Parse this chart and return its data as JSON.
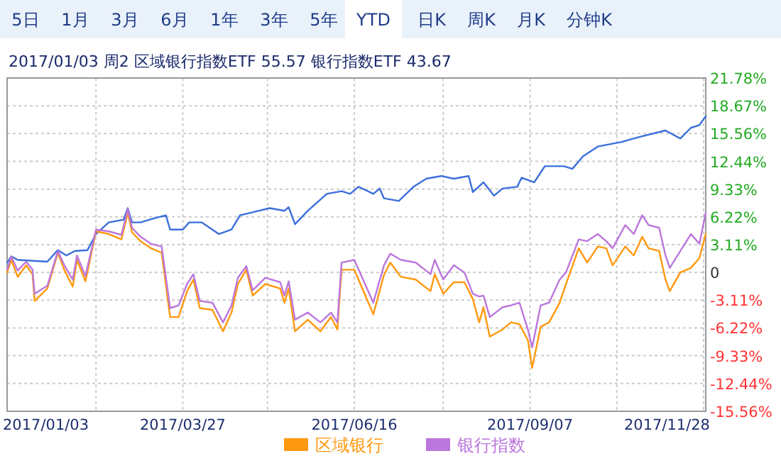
{
  "chart_data": {
    "type": "line",
    "title": "2017/01/03 周2 区域银行指数ETF 55.57 银行指数ETF 43.67",
    "annotations": [
      "5日",
      "1月",
      "3月",
      "6月",
      "1年",
      "3年",
      "5年",
      "YTD",
      "日K",
      "周K",
      "月K",
      "分钟K"
    ],
    "xlim": [
      "2017-01-03",
      "2017-11-29"
    ],
    "xticks": [
      {
        "value": "2017-01-03",
        "label": "2017/01/03"
      },
      {
        "value": "2017-02-14",
        "label": null
      },
      {
        "value": "2017-03-27",
        "label": "2017/03/27"
      },
      {
        "value": "2017-05-06",
        "label": null
      },
      {
        "value": "2017-06-16",
        "label": "2017/06/16"
      },
      {
        "value": "2017-07-28",
        "label": null
      },
      {
        "value": "2017-09-07",
        "label": "2017/09/07"
      },
      {
        "value": "2017-10-18",
        "label": null
      },
      {
        "value": "2017-11-28",
        "label": "2017/11/28"
      }
    ],
    "ylim": [
      -15.56,
      21.78
    ],
    "yticks": [
      {
        "value": -15.56,
        "label": "-15.56%"
      },
      {
        "value": -12.44,
        "label": "-12.44%"
      },
      {
        "value": -9.33,
        "label": "-9.33%"
      },
      {
        "value": -6.22,
        "label": "-6.22%"
      },
      {
        "value": -3.11,
        "label": "-3.11%"
      },
      0,
      {
        "value": 3.11,
        "label": "3.11%"
      },
      {
        "value": 6.22,
        "label": "6.22%"
      },
      {
        "value": 9.33,
        "label": "9.33%"
      },
      {
        "value": 12.44,
        "label": "12.44%"
      },
      {
        "value": 15.56,
        "label": "15.56%"
      },
      {
        "value": 18.67,
        "label": "18.67%"
      },
      {
        "value": 21.78,
        "label": "21.78%"
      }
    ],
    "grid": true,
    "legend": "bottom",
    "line_style": "solid",
    "marker": "none",
    "series": [
      {
        "color": "#3b6fdc",
        "x": [
          "2017-01-03",
          "2017-01-05",
          "2017-01-08",
          "2017-01-22",
          "2017-01-27",
          "2017-01-31",
          "2017-02-04",
          "2017-02-10",
          "2017-02-14",
          "2017-02-20",
          "2017-02-27",
          "2017-03-01",
          "2017-03-03",
          "2017-03-07",
          "2017-03-14",
          "2017-03-19",
          "2017-03-21",
          "2017-03-27",
          "2017-03-30",
          "2017-04-05",
          "2017-04-13",
          "2017-04-19",
          "2017-04-23",
          "2017-04-30",
          "2017-05-07",
          "2017-05-14",
          "2017-05-16",
          "2017-05-19",
          "2017-05-25",
          "2017-06-03",
          "2017-06-10",
          "2017-06-14",
          "2017-06-18",
          "2017-06-25",
          "2017-06-28",
          "2017-06-30",
          "2017-07-07",
          "2017-07-14",
          "2017-07-20",
          "2017-07-27",
          "2017-08-02",
          "2017-08-09",
          "2017-08-11",
          "2017-08-16",
          "2017-08-21",
          "2017-08-25",
          "2017-09-01",
          "2017-09-03",
          "2017-09-09",
          "2017-09-14",
          "2017-09-23",
          "2017-09-27",
          "2017-10-02",
          "2017-10-09",
          "2017-10-20",
          "2017-10-29",
          "2017-11-10",
          "2017-11-17",
          "2017-11-22",
          "2017-11-26",
          "2017-11-29"
        ],
        "values": [
          1.1,
          1.8,
          1.4,
          1.2,
          2.5,
          1.9,
          2.4,
          2.5,
          4.3,
          5.6,
          5.9,
          7.2,
          5.6,
          5.6,
          6.1,
          6.4,
          4.8,
          4.8,
          5.6,
          5.6,
          4.3,
          4.8,
          6.4,
          6.8,
          7.2,
          6.9,
          7.3,
          5.4,
          6.9,
          8.8,
          9.1,
          8.8,
          9.6,
          8.8,
          9.4,
          8.3,
          8.0,
          9.6,
          10.5,
          10.8,
          10.5,
          10.8,
          9.0,
          10.1,
          8.6,
          9.4,
          9.6,
          10.6,
          10.1,
          11.9,
          11.9,
          11.6,
          13.0,
          14.1,
          14.6,
          15.2,
          15.9,
          15.0,
          16.2,
          16.5,
          17.5
        ]
      },
      {
        "name": "区域银行",
        "color": "#ff9910",
        "x": [
          "2017-01-03",
          "2017-01-05",
          "2017-01-08",
          "2017-01-12",
          "2017-01-15",
          "2017-01-16",
          "2017-01-22",
          "2017-01-27",
          "2017-01-30",
          "2017-02-03",
          "2017-02-05",
          "2017-02-09",
          "2017-02-14",
          "2017-02-20",
          "2017-02-26",
          "2017-03-01",
          "2017-03-03",
          "2017-03-07",
          "2017-03-12",
          "2017-03-17",
          "2017-03-21",
          "2017-03-25",
          "2017-03-29",
          "2017-04-01",
          "2017-04-04",
          "2017-04-10",
          "2017-04-15",
          "2017-04-19",
          "2017-04-22",
          "2017-04-26",
          "2017-04-29",
          "2017-05-05",
          "2017-05-12",
          "2017-05-14",
          "2017-05-16",
          "2017-05-19",
          "2017-05-25",
          "2017-05-31",
          "2017-06-05",
          "2017-06-08",
          "2017-06-10",
          "2017-06-16",
          "2017-06-25",
          "2017-06-30",
          "2017-07-03",
          "2017-07-08",
          "2017-07-15",
          "2017-07-22",
          "2017-07-24",
          "2017-07-28",
          "2017-08-02",
          "2017-08-07",
          "2017-08-11",
          "2017-08-14",
          "2017-08-16",
          "2017-08-19",
          "2017-08-25",
          "2017-08-29",
          "2017-09-02",
          "2017-09-06",
          "2017-09-08",
          "2017-09-12",
          "2017-09-16",
          "2017-09-21",
          "2017-09-24",
          "2017-09-30",
          "2017-10-04",
          "2017-10-09",
          "2017-10-13",
          "2017-10-16",
          "2017-10-22",
          "2017-10-26",
          "2017-10-30",
          "2017-11-02",
          "2017-11-07",
          "2017-11-10",
          "2017-11-12",
          "2017-11-17",
          "2017-11-22",
          "2017-11-26",
          "2017-11-29"
        ],
        "values": [
          0,
          1.4,
          -0.5,
          0.8,
          -0.2,
          -3.2,
          -1.8,
          2.2,
          0.3,
          -1.6,
          1.4,
          -1.0,
          4.6,
          4.3,
          3.7,
          6.7,
          4.5,
          3.5,
          2.7,
          2.2,
          -5.0,
          -5.0,
          -2.1,
          -0.8,
          -4.0,
          -4.2,
          -6.6,
          -4.5,
          -1.3,
          0.3,
          -2.6,
          -1.3,
          -1.8,
          -3.4,
          -1.8,
          -6.6,
          -5.3,
          -6.6,
          -5.0,
          -6.4,
          0.3,
          0.3,
          -4.7,
          -0.3,
          1.1,
          -0.5,
          -0.8,
          -2.1,
          -0.2,
          -2.4,
          -1.1,
          -1.1,
          -3.0,
          -5.6,
          -3.9,
          -7.2,
          -6.4,
          -5.6,
          -5.8,
          -7.6,
          -10.7,
          -6.1,
          -5.6,
          -3.4,
          -1.3,
          2.7,
          1.1,
          2.9,
          2.7,
          0.8,
          2.9,
          1.9,
          4.0,
          2.7,
          2.4,
          -0.8,
          -2.1,
          0.0,
          0.5,
          1.6,
          4.3
        ]
      },
      {
        "name": "银行指数",
        "color": "#bb77dd",
        "x": [
          "2017-01-03",
          "2017-01-05",
          "2017-01-08",
          "2017-01-12",
          "2017-01-15",
          "2017-01-16",
          "2017-01-22",
          "2017-01-27",
          "2017-01-30",
          "2017-02-03",
          "2017-02-05",
          "2017-02-09",
          "2017-02-14",
          "2017-02-20",
          "2017-02-26",
          "2017-03-01",
          "2017-03-03",
          "2017-03-07",
          "2017-03-12",
          "2017-03-17",
          "2017-03-21",
          "2017-03-25",
          "2017-03-29",
          "2017-04-01",
          "2017-04-04",
          "2017-04-10",
          "2017-04-15",
          "2017-04-19",
          "2017-04-22",
          "2017-04-26",
          "2017-04-29",
          "2017-05-05",
          "2017-05-12",
          "2017-05-14",
          "2017-05-16",
          "2017-05-19",
          "2017-05-25",
          "2017-05-31",
          "2017-06-05",
          "2017-06-08",
          "2017-06-10",
          "2017-06-16",
          "2017-06-25",
          "2017-06-30",
          "2017-07-03",
          "2017-07-08",
          "2017-07-15",
          "2017-07-22",
          "2017-07-24",
          "2017-07-28",
          "2017-08-02",
          "2017-08-07",
          "2017-08-11",
          "2017-08-14",
          "2017-08-16",
          "2017-08-19",
          "2017-08-25",
          "2017-08-29",
          "2017-09-02",
          "2017-09-06",
          "2017-09-08",
          "2017-09-12",
          "2017-09-16",
          "2017-09-21",
          "2017-09-24",
          "2017-09-30",
          "2017-10-04",
          "2017-10-09",
          "2017-10-13",
          "2017-10-16",
          "2017-10-22",
          "2017-10-26",
          "2017-10-30",
          "2017-11-02",
          "2017-11-07",
          "2017-11-10",
          "2017-11-12",
          "2017-11-17",
          "2017-11-22",
          "2017-11-26",
          "2017-11-29"
        ],
        "values": [
          0.3,
          1.8,
          0.2,
          1.2,
          0.3,
          -2.4,
          -1.5,
          2.4,
          0.8,
          -0.8,
          1.9,
          -0.4,
          4.8,
          4.6,
          4.2,
          7.1,
          5.0,
          4.0,
          3.2,
          2.9,
          -4.0,
          -3.7,
          -1.3,
          -0.2,
          -3.2,
          -3.4,
          -5.6,
          -3.7,
          -0.6,
          0.7,
          -2.0,
          -0.6,
          -1.1,
          -2.6,
          -1.0,
          -5.3,
          -4.5,
          -5.6,
          -4.5,
          -5.6,
          1.1,
          1.4,
          -3.4,
          0.8,
          2.1,
          1.4,
          1.1,
          -0.2,
          1.4,
          -0.8,
          0.8,
          0.0,
          -2.4,
          -2.7,
          -2.6,
          -5.0,
          -3.9,
          -3.7,
          -3.4,
          -6.4,
          -8.4,
          -3.7,
          -3.4,
          -0.8,
          0.0,
          3.7,
          3.5,
          4.3,
          3.5,
          2.7,
          5.3,
          4.3,
          6.4,
          5.3,
          5.0,
          1.9,
          0.5,
          2.4,
          4.3,
          3.2,
          6.7
        ]
      }
    ]
  }
}
